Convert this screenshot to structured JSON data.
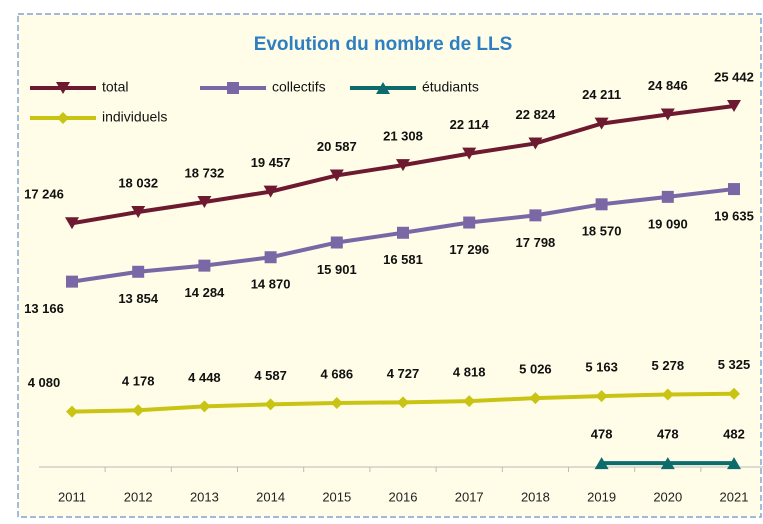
{
  "chart_data": {
    "type": "line",
    "title": "Evolution du nombre de LLS",
    "categories": [
      "2011",
      "2012",
      "2013",
      "2014",
      "2015",
      "2016",
      "2017",
      "2018",
      "2019",
      "2020",
      "2021"
    ],
    "ylim": [
      0,
      26000
    ],
    "series": [
      {
        "name": "total",
        "color": "#6d1a30",
        "marker": "triangle-down",
        "values": [
          17246,
          18032,
          18732,
          19457,
          20587,
          21308,
          22114,
          22824,
          24211,
          24846,
          25442
        ],
        "value_labels": [
          "17 246",
          "18 032",
          "18 732",
          "19 457",
          "20 587",
          "21 308",
          "22 114",
          "22 824",
          "24 211",
          "24 846",
          "25 442"
        ]
      },
      {
        "name": "collectifs",
        "color": "#7a68a6",
        "marker": "square",
        "values": [
          13166,
          13854,
          14284,
          14870,
          15901,
          16581,
          17296,
          17798,
          18570,
          19090,
          19635
        ],
        "value_labels": [
          "13 166",
          "13 854",
          "14 284",
          "14 870",
          "15 901",
          "16 581",
          "17 296",
          "17 798",
          "18 570",
          "19 090",
          "19 635"
        ]
      },
      {
        "name": "étudiants",
        "color": "#0e6b6b",
        "marker": "triangle-up",
        "values": [
          null,
          null,
          null,
          null,
          null,
          null,
          null,
          null,
          478,
          478,
          482
        ]
      },
      {
        "name": "individuels",
        "color": "#c9c414",
        "marker": "diamond",
        "values": [
          4080,
          4178,
          4448,
          4587,
          4686,
          4727,
          4818,
          5026,
          5163,
          5278,
          5325
        ],
        "value_labels": [
          "4 080",
          "4 178",
          "4 448",
          "4 587",
          "4 686",
          "4 727",
          "4 818",
          "5 026",
          "5 163",
          "5 278",
          "5 325"
        ]
      }
    ]
  }
}
